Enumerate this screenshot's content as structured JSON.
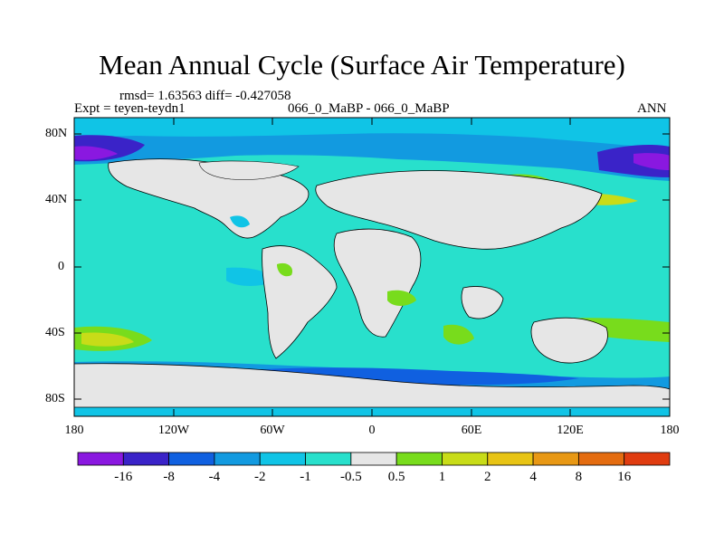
{
  "title": "Mean Annual Cycle (Surface Air Temperature)",
  "stats": {
    "rmsd_label": "rmsd= 1.63563 diff= -0.427058",
    "expt_label": "Expt = teyen-teydn1",
    "case_label": "066_0_MaBP - 066_0_MaBP",
    "season_label": "ANN"
  },
  "axes": {
    "lat_ticks": [
      "80N",
      "40N",
      "0",
      "40S",
      "80S"
    ],
    "lon_ticks": [
      "180",
      "120W",
      "60W",
      "0",
      "60E",
      "120E",
      "180"
    ]
  },
  "colorbar": {
    "colors": [
      "#8a18e0",
      "#3a23c8",
      "#1060e0",
      "#129ae0",
      "#10c4e6",
      "#28e0cc",
      "#e6e6e6",
      "#78dc1c",
      "#c8dc18",
      "#e8c414",
      "#e89814",
      "#e46c10",
      "#e03c10"
    ],
    "labels": [
      "-16",
      "-8",
      "-4",
      "-2",
      "-1",
      "-0.5",
      "0.5",
      "1",
      "2",
      "4",
      "8",
      "16"
    ]
  },
  "colors": {
    "land_gray": "#e6e6e6",
    "coast_line": "#000000"
  }
}
